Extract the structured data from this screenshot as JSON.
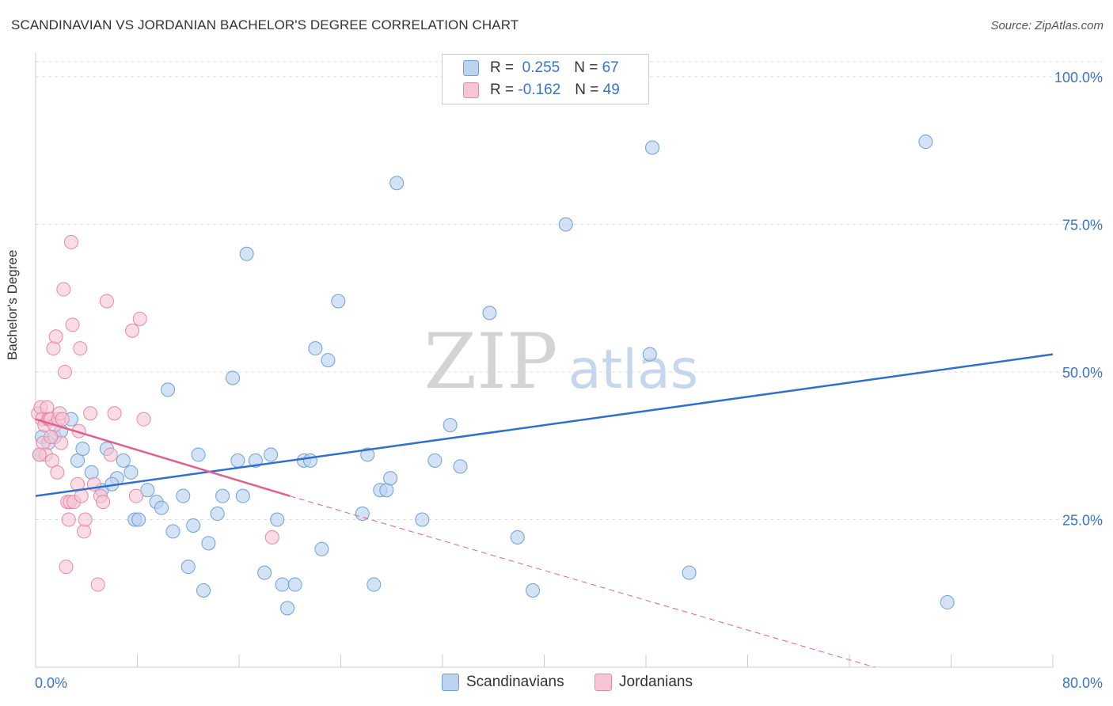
{
  "title": "SCANDINAVIAN VS JORDANIAN BACHELOR'S DEGREE CORRELATION CHART",
  "source": "Source: ZipAtlas.com",
  "watermark": {
    "zip": "ZIP",
    "atlas": "atlas"
  },
  "legend": {
    "scand": {
      "r_label": "R =",
      "r_value": "0.255",
      "n_label": "N =",
      "n_value": "67"
    },
    "jord": {
      "r_label": "R =",
      "r_value": "-0.162",
      "n_label": "N =",
      "n_value": "49"
    }
  },
  "bottom_legend": {
    "scand": "Scandinavians",
    "jord": "Jordanians"
  },
  "colors": {
    "scand_fill": "#bcd3f0",
    "scand_stroke": "#6f9fd8",
    "scand_line": "#2f6fd0",
    "jord_fill": "#f7c4d4",
    "jord_stroke": "#e589a8",
    "jord_line": "#e4608c",
    "tick_text": "#3a73c9",
    "grid": "#dddddd"
  },
  "chart_data": {
    "type": "scatter",
    "title": "SCANDINAVIAN VS JORDANIAN BACHELOR'S DEGREE CORRELATION CHART",
    "xlabel": "",
    "ylabel": "Bachelor's Degree",
    "xlim": [
      0,
      80
    ],
    "ylim": [
      0,
      100
    ],
    "x_tick_labels": [
      "0.0%",
      "80.0%"
    ],
    "y_ticks": [
      25,
      50,
      75,
      100
    ],
    "y_tick_labels": [
      "25.0%",
      "50.0%",
      "75.0%",
      "100.0%"
    ],
    "series": [
      {
        "name": "Scandinavians",
        "r": 0.255,
        "n": 67,
        "trend": {
          "x": [
            0,
            80
          ],
          "y": [
            29,
            53
          ]
        },
        "points": [
          [
            0.3,
            36
          ],
          [
            0.5,
            39
          ],
          [
            1.0,
            38
          ],
          [
            1.5,
            39
          ],
          [
            2.0,
            40
          ],
          [
            2.8,
            42
          ],
          [
            3.3,
            35
          ],
          [
            3.7,
            37
          ],
          [
            4.4,
            33
          ],
          [
            5.2,
            30
          ],
          [
            5.6,
            37
          ],
          [
            6.4,
            32
          ],
          [
            6.0,
            31
          ],
          [
            6.9,
            35
          ],
          [
            7.5,
            33
          ],
          [
            7.8,
            25
          ],
          [
            8.1,
            25
          ],
          [
            8.8,
            30
          ],
          [
            9.5,
            28
          ],
          [
            9.9,
            27
          ],
          [
            10.4,
            47
          ],
          [
            10.8,
            23
          ],
          [
            11.6,
            29
          ],
          [
            12.0,
            17
          ],
          [
            12.4,
            24
          ],
          [
            12.8,
            36
          ],
          [
            13.2,
            13
          ],
          [
            13.6,
            21
          ],
          [
            14.3,
            26
          ],
          [
            14.7,
            29
          ],
          [
            15.5,
            49
          ],
          [
            15.9,
            35
          ],
          [
            16.3,
            29
          ],
          [
            16.6,
            70
          ],
          [
            17.3,
            35
          ],
          [
            18.0,
            16
          ],
          [
            18.5,
            36
          ],
          [
            19.0,
            25
          ],
          [
            19.4,
            14
          ],
          [
            19.8,
            10
          ],
          [
            20.4,
            14
          ],
          [
            21.1,
            35
          ],
          [
            21.6,
            35
          ],
          [
            22.0,
            54
          ],
          [
            22.5,
            20
          ],
          [
            23.0,
            52
          ],
          [
            23.8,
            62
          ],
          [
            25.7,
            26
          ],
          [
            26.1,
            36
          ],
          [
            26.6,
            14
          ],
          [
            27.1,
            30
          ],
          [
            27.6,
            30
          ],
          [
            27.9,
            32
          ],
          [
            28.4,
            82
          ],
          [
            30.4,
            25
          ],
          [
            31.4,
            35
          ],
          [
            32.6,
            41
          ],
          [
            33.4,
            34
          ],
          [
            35.7,
            60
          ],
          [
            37.9,
            22
          ],
          [
            39.1,
            13
          ],
          [
            41.7,
            75
          ],
          [
            48.3,
            53
          ],
          [
            48.5,
            88
          ],
          [
            51.4,
            16
          ],
          [
            70.0,
            89
          ],
          [
            71.7,
            11
          ]
        ]
      },
      {
        "name": "Jordanians",
        "r": -0.162,
        "n": 49,
        "trend": {
          "x": [
            0,
            20
          ],
          "y": [
            42,
            29
          ]
        },
        "trend_dashed": {
          "x": [
            20,
            66
          ],
          "y": [
            29,
            0
          ]
        },
        "points": [
          [
            0.2,
            43
          ],
          [
            0.4,
            44
          ],
          [
            0.5,
            42
          ],
          [
            0.6,
            38
          ],
          [
            0.7,
            41
          ],
          [
            0.8,
            36
          ],
          [
            0.9,
            44
          ],
          [
            1.0,
            42
          ],
          [
            1.1,
            42
          ],
          [
            1.2,
            42
          ],
          [
            1.3,
            35
          ],
          [
            1.4,
            54
          ],
          [
            1.5,
            41
          ],
          [
            1.6,
            56
          ],
          [
            1.7,
            33
          ],
          [
            1.8,
            42
          ],
          [
            1.9,
            43
          ],
          [
            2.0,
            38
          ],
          [
            2.1,
            42
          ],
          [
            2.2,
            64
          ],
          [
            2.3,
            50
          ],
          [
            2.4,
            17
          ],
          [
            2.5,
            28
          ],
          [
            2.6,
            25
          ],
          [
            2.7,
            28
          ],
          [
            2.8,
            72
          ],
          [
            2.9,
            58
          ],
          [
            3.0,
            28
          ],
          [
            3.3,
            31
          ],
          [
            3.4,
            40
          ],
          [
            3.5,
            54
          ],
          [
            3.6,
            29
          ],
          [
            3.8,
            23
          ],
          [
            3.9,
            25
          ],
          [
            4.3,
            43
          ],
          [
            4.6,
            31
          ],
          [
            4.9,
            14
          ],
          [
            5.1,
            29
          ],
          [
            5.3,
            28
          ],
          [
            5.6,
            62
          ],
          [
            5.9,
            36
          ],
          [
            6.2,
            43
          ],
          [
            7.6,
            57
          ],
          [
            7.9,
            29
          ],
          [
            8.2,
            59
          ],
          [
            8.5,
            42
          ],
          [
            18.6,
            22
          ],
          [
            0.3,
            36
          ],
          [
            1.2,
            39
          ]
        ]
      }
    ]
  }
}
